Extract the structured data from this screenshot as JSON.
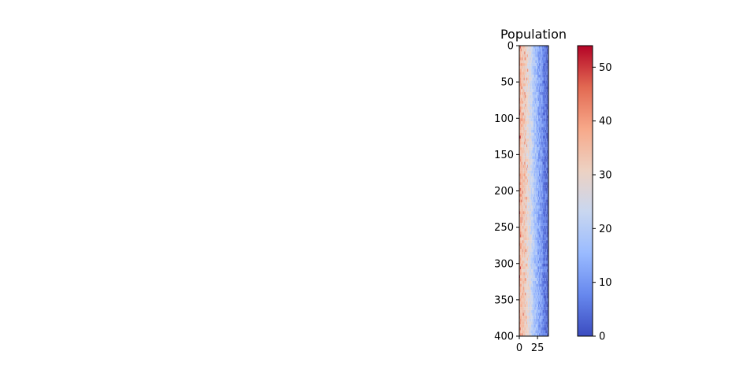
{
  "chart_data": {
    "type": "heatmap",
    "title": "Population",
    "xlabel": "",
    "ylabel": "",
    "xlim": [
      0,
      40
    ],
    "ylim": [
      400,
      0
    ],
    "x_ticks": [
      0,
      25
    ],
    "y_ticks": [
      0,
      50,
      100,
      150,
      200,
      250,
      300,
      350,
      400
    ],
    "grid": false,
    "rows": 400,
    "cols": 40,
    "value_profile": {
      "description_of_columns": "high values near low column indices, decreasing to the right",
      "col_index": [
        0,
        2,
        5,
        8,
        12,
        16,
        20,
        25,
        30,
        35,
        39
      ],
      "typical_value": [
        40,
        36,
        33,
        31,
        28,
        23,
        18,
        13,
        9,
        5,
        2
      ]
    },
    "colormap": "coolwarm",
    "colorbar": {
      "range": [
        0,
        54
      ],
      "ticks": [
        0,
        10,
        20,
        30,
        40,
        50
      ],
      "stops": [
        "#3b4cc0",
        "#6788ee",
        "#9abbff",
        "#c9d7f0",
        "#edd1c2",
        "#f7a889",
        "#e26952",
        "#b40426"
      ]
    }
  }
}
